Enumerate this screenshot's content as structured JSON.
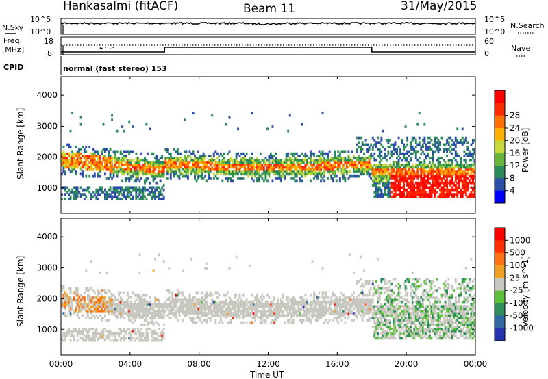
{
  "header": {
    "station": "Hankasalmi (fitACF)",
    "beam": "Beam 11",
    "date": "31/May/2015"
  },
  "upper_panels": {
    "nsky_label": "N.Sky",
    "nsearch_label": "N.Search",
    "nsky_ticks": [
      "10^5",
      "10^0"
    ],
    "nsearch_ticks": [
      "10^5",
      "10^0"
    ],
    "freq_label_1": "Freq.",
    "freq_label_2": "[MHz]",
    "freq_ticks": [
      "18",
      "8"
    ],
    "nave_label": "Nave",
    "nave_ticks": [
      "60",
      "0"
    ],
    "cpid_label": "CPID",
    "cpid_text": "normal (fast stereo) 153"
  },
  "chart_data": [
    {
      "type": "heatmap",
      "name": "power",
      "ylabel": "Slant Range [km]",
      "xlabel": "Time UT",
      "x_ticks": [
        "00:00",
        "04:00",
        "08:00",
        "12:00",
        "16:00",
        "20:00",
        "00:00"
      ],
      "y_ticks": [
        "1000",
        "2000",
        "3000",
        "4000"
      ],
      "ylim": [
        180,
        4600
      ],
      "xlim": [
        0,
        24
      ],
      "colorbar": {
        "label": "Power [dB]",
        "ticks": [
          "4",
          "8",
          "12",
          "16",
          "20",
          "24",
          "28"
        ],
        "range": [
          0,
          30
        ],
        "colors": [
          "#0000ff",
          "#2c4ea8",
          "#2a8a5a",
          "#6ab43c",
          "#c8d83a",
          "#ffb000",
          "#ff7000",
          "#ff2a00",
          "#ff0000"
        ]
      }
    },
    {
      "type": "heatmap",
      "name": "velocity",
      "ylabel": "Slant Range [km]",
      "xlabel": "Time UT",
      "x_ticks": [
        "00:00",
        "04:00",
        "08:00",
        "12:00",
        "16:00",
        "20:00",
        "00:00"
      ],
      "y_ticks": [
        "1000",
        "2000",
        "3000",
        "4000"
      ],
      "ylim": [
        180,
        4600
      ],
      "xlim": [
        0,
        24
      ],
      "colorbar": {
        "label": "Velocity [m s^-1]",
        "ticks": [
          "1000",
          "500",
          "100",
          "25",
          "-25",
          "-100",
          "-500",
          "-1000"
        ],
        "colors": [
          "#2433b0",
          "#2f6aa0",
          "#2e8f5a",
          "#5cc03a",
          "#c8c8c0",
          "#f0a020",
          "#ff7010",
          "#ff3000",
          "#ff0000"
        ]
      }
    }
  ]
}
